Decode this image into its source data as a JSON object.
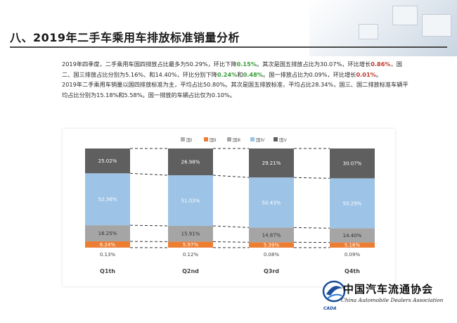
{
  "header": {
    "title": "八、2019年二手车乘用车排放标准销量分析"
  },
  "summary": {
    "p1": {
      "t1": "2019年四季度，二手乘用车国四排放占比最多为50.29%，环比下降",
      "v1": "0.15%",
      "t2": "。其次是国五排放占比为30.07%，环比增长",
      "v2": "0.86%",
      "t3": "，国二、国三排放占比分别为5.16%、和14.40%，环比分别下降",
      "v3": "0.24%",
      "t4": "和",
      "v4": "0.48%",
      "t5": "。国一排放占比为0.09%，环比增长",
      "v5": "0.01%",
      "t6": "。"
    },
    "p2": "2019年二手乘用车销量以国四排放标准为主，平均占比50.80%。其次是国五排放标准，平均占比28.34%，国三、国二排放标准车辆平均占比分别为15.18%和5.58%。国一排放的车辆占比仅为0.10%。"
  },
  "colors": {
    "guo1": "#b0b0b0",
    "guo2": "#ed7d31",
    "guo3": "#a5a5a5",
    "guo4": "#9dc3e6",
    "guo5": "#5f5f5f",
    "green": "#3a9b3a",
    "red": "#c0392b"
  },
  "chart_data": {
    "type": "bar",
    "stacked": true,
    "normalized": true,
    "categories": [
      "Q1th",
      "Q2nd",
      "Q3rd",
      "Q4th"
    ],
    "series": [
      {
        "name": "国Ⅰ",
        "values": [
          0.13,
          0.12,
          0.08,
          0.09
        ],
        "labels": [
          "0.13%",
          "0.12%",
          "0.08%",
          "0.09%"
        ]
      },
      {
        "name": "国Ⅱ",
        "values": [
          6.24,
          5.97,
          5.39,
          5.16
        ],
        "labels": [
          "6.24%",
          "5.97%",
          "5.39%",
          "5.16%"
        ]
      },
      {
        "name": "国Ⅲ",
        "values": [
          16.25,
          15.91,
          14.87,
          14.4
        ],
        "labels": [
          "16.25%",
          "15.91%",
          "14.87%",
          "14.40%"
        ]
      },
      {
        "name": "国Ⅳ",
        "values": [
          52.36,
          51.03,
          50.43,
          50.29
        ],
        "labels": [
          "52.36%",
          "51.03%",
          "50.43%",
          "50.29%"
        ]
      },
      {
        "name": "国Ⅴ",
        "values": [
          25.02,
          26.98,
          29.21,
          30.07
        ],
        "labels": [
          "25.02%",
          "26.98%",
          "29.21%",
          "30.07%"
        ]
      }
    ],
    "legend_position": "top-center",
    "series_lines": "dashed"
  },
  "logo": {
    "cn": "中国汽车流通协会",
    "en": "China Automobile Dealers Association",
    "abbr": "CADA"
  }
}
